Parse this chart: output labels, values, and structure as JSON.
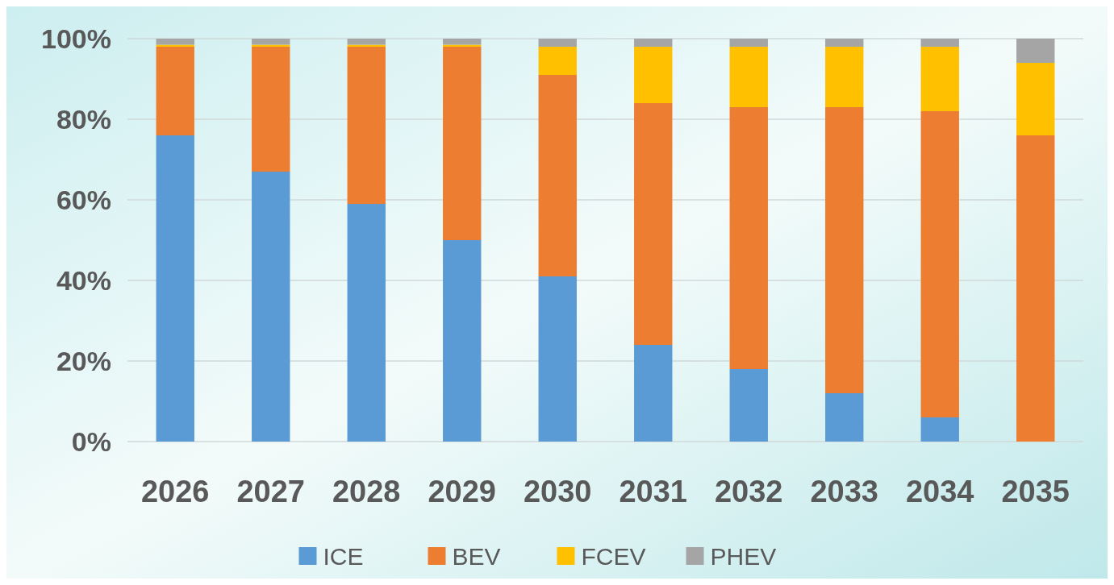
{
  "chart_data": {
    "type": "bar",
    "stacked": true,
    "categories": [
      "2026",
      "2027",
      "2028",
      "2029",
      "2030",
      "2031",
      "2032",
      "2033",
      "2034",
      "2035"
    ],
    "series": [
      {
        "name": "ICE",
        "color": "#5b9bd5",
        "values": [
          76,
          67,
          59,
          50,
          41,
          24,
          18,
          12,
          6,
          0
        ]
      },
      {
        "name": "BEV",
        "color": "#ed7d31",
        "values": [
          22,
          31,
          39,
          48,
          50,
          60,
          65,
          71,
          76,
          76
        ]
      },
      {
        "name": "FCEV",
        "color": "#ffc000",
        "values": [
          0.5,
          0.5,
          0.5,
          0.5,
          7,
          14,
          15,
          15,
          16,
          18
        ]
      },
      {
        "name": "PHEV",
        "color": "#a5a5a5",
        "values": [
          1.5,
          1.5,
          1.5,
          1.5,
          2,
          2,
          2,
          2,
          2,
          6
        ]
      }
    ],
    "ylim": [
      0,
      100
    ],
    "yticks": [
      {
        "value": 0,
        "label": "0%"
      },
      {
        "value": 20,
        "label": "20%"
      },
      {
        "value": 40,
        "label": "40%"
      },
      {
        "value": 60,
        "label": "60%"
      },
      {
        "value": 80,
        "label": "80%"
      },
      {
        "value": 100,
        "label": "100%"
      }
    ],
    "grid": "y",
    "legend": "bottom"
  }
}
